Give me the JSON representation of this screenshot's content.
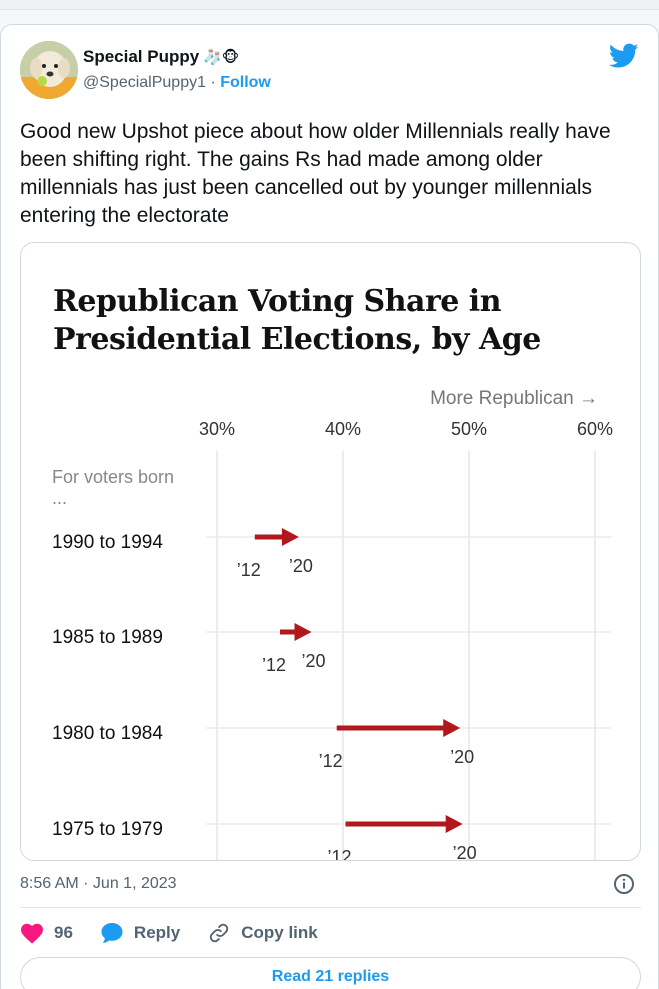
{
  "tweet": {
    "author_name": "Special Puppy",
    "author_emoji": "🧦🐵",
    "handle": "@SpecialPuppy1",
    "separator": "·",
    "follow_label": "Follow",
    "text": "Good new Upshot piece about how older Millennials really have been shifting right. The gains Rs had made among older millennials has just been cancelled out by younger millennials entering the electorate",
    "timestamp": "8:56 AM · Jun 1, 2023",
    "like_count": "96",
    "reply_label": "Reply",
    "copy_link_label": "Copy link",
    "read_replies_label": "Read 21 replies"
  },
  "colors": {
    "accent": "#1d9bf0",
    "like": "#f91880",
    "arrow": "#b0181b"
  },
  "icons": [
    "twitter-bird-icon",
    "info-icon",
    "heart-icon",
    "reply-bubble-icon",
    "link-icon"
  ],
  "chart_data": {
    "type": "arrow-range",
    "title": "Republican Voting Share in Presidential Elections, by Age",
    "direction_label": "More Republican →",
    "x_ticks": [
      "30%",
      "40%",
      "50%",
      "60%"
    ],
    "x_tick_values": [
      30,
      40,
      50,
      60
    ],
    "xlim": [
      30,
      60
    ],
    "row_header": "For voters born ...",
    "start_label": "’12",
    "end_label": "’20",
    "series": [
      {
        "name": "1990 to 1994",
        "start": 33.0,
        "end": 36.5
      },
      {
        "name": "1985 to 1989",
        "start": 35.0,
        "end": 37.5
      },
      {
        "name": "1980 to 1984",
        "start": 39.5,
        "end": 49.3
      },
      {
        "name": "1975 to 1979",
        "start": 40.2,
        "end": 49.5
      }
    ]
  }
}
